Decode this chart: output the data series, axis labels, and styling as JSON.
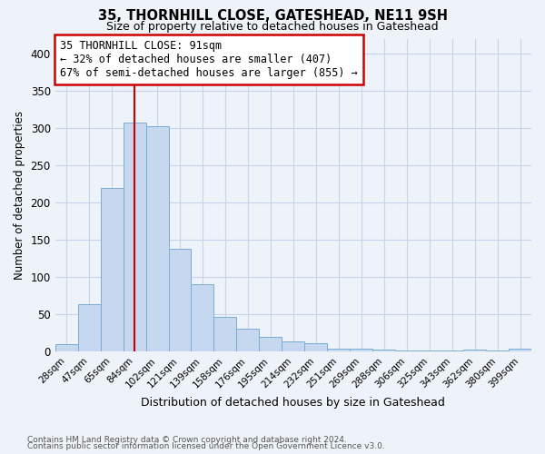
{
  "title": "35, THORNHILL CLOSE, GATESHEAD, NE11 9SH",
  "subtitle": "Size of property relative to detached houses in Gateshead",
  "xlabel": "Distribution of detached houses by size in Gateshead",
  "ylabel": "Number of detached properties",
  "footnote1": "Contains HM Land Registry data © Crown copyright and database right 2024.",
  "footnote2": "Contains public sector information licensed under the Open Government Licence v3.0.",
  "bar_labels": [
    "28sqm",
    "47sqm",
    "65sqm",
    "84sqm",
    "102sqm",
    "121sqm",
    "139sqm",
    "158sqm",
    "176sqm",
    "195sqm",
    "214sqm",
    "232sqm",
    "251sqm",
    "269sqm",
    "288sqm",
    "306sqm",
    "325sqm",
    "343sqm",
    "362sqm",
    "380sqm",
    "399sqm"
  ],
  "bar_values": [
    10,
    63,
    220,
    307,
    302,
    138,
    90,
    46,
    30,
    20,
    13,
    11,
    3,
    4,
    2,
    1,
    1,
    1,
    2,
    1,
    3
  ],
  "bar_color": "#c5d8f0",
  "bar_edge_color": "#7aadd4",
  "vline_x": 3,
  "vline_color": "#cc0000",
  "annotation_title": "35 THORNHILL CLOSE: 91sqm",
  "annotation_line1": "← 32% of detached houses are smaller (407)",
  "annotation_line2": "67% of semi-detached houses are larger (855) →",
  "annotation_box_color": "#cc0000",
  "ylim": [
    0,
    420
  ],
  "yticks": [
    0,
    50,
    100,
    150,
    200,
    250,
    300,
    350,
    400
  ],
  "bg_color": "#eef2f9",
  "plot_bg_color": "#eef2f9",
  "grid_color": "#c8d4e8"
}
